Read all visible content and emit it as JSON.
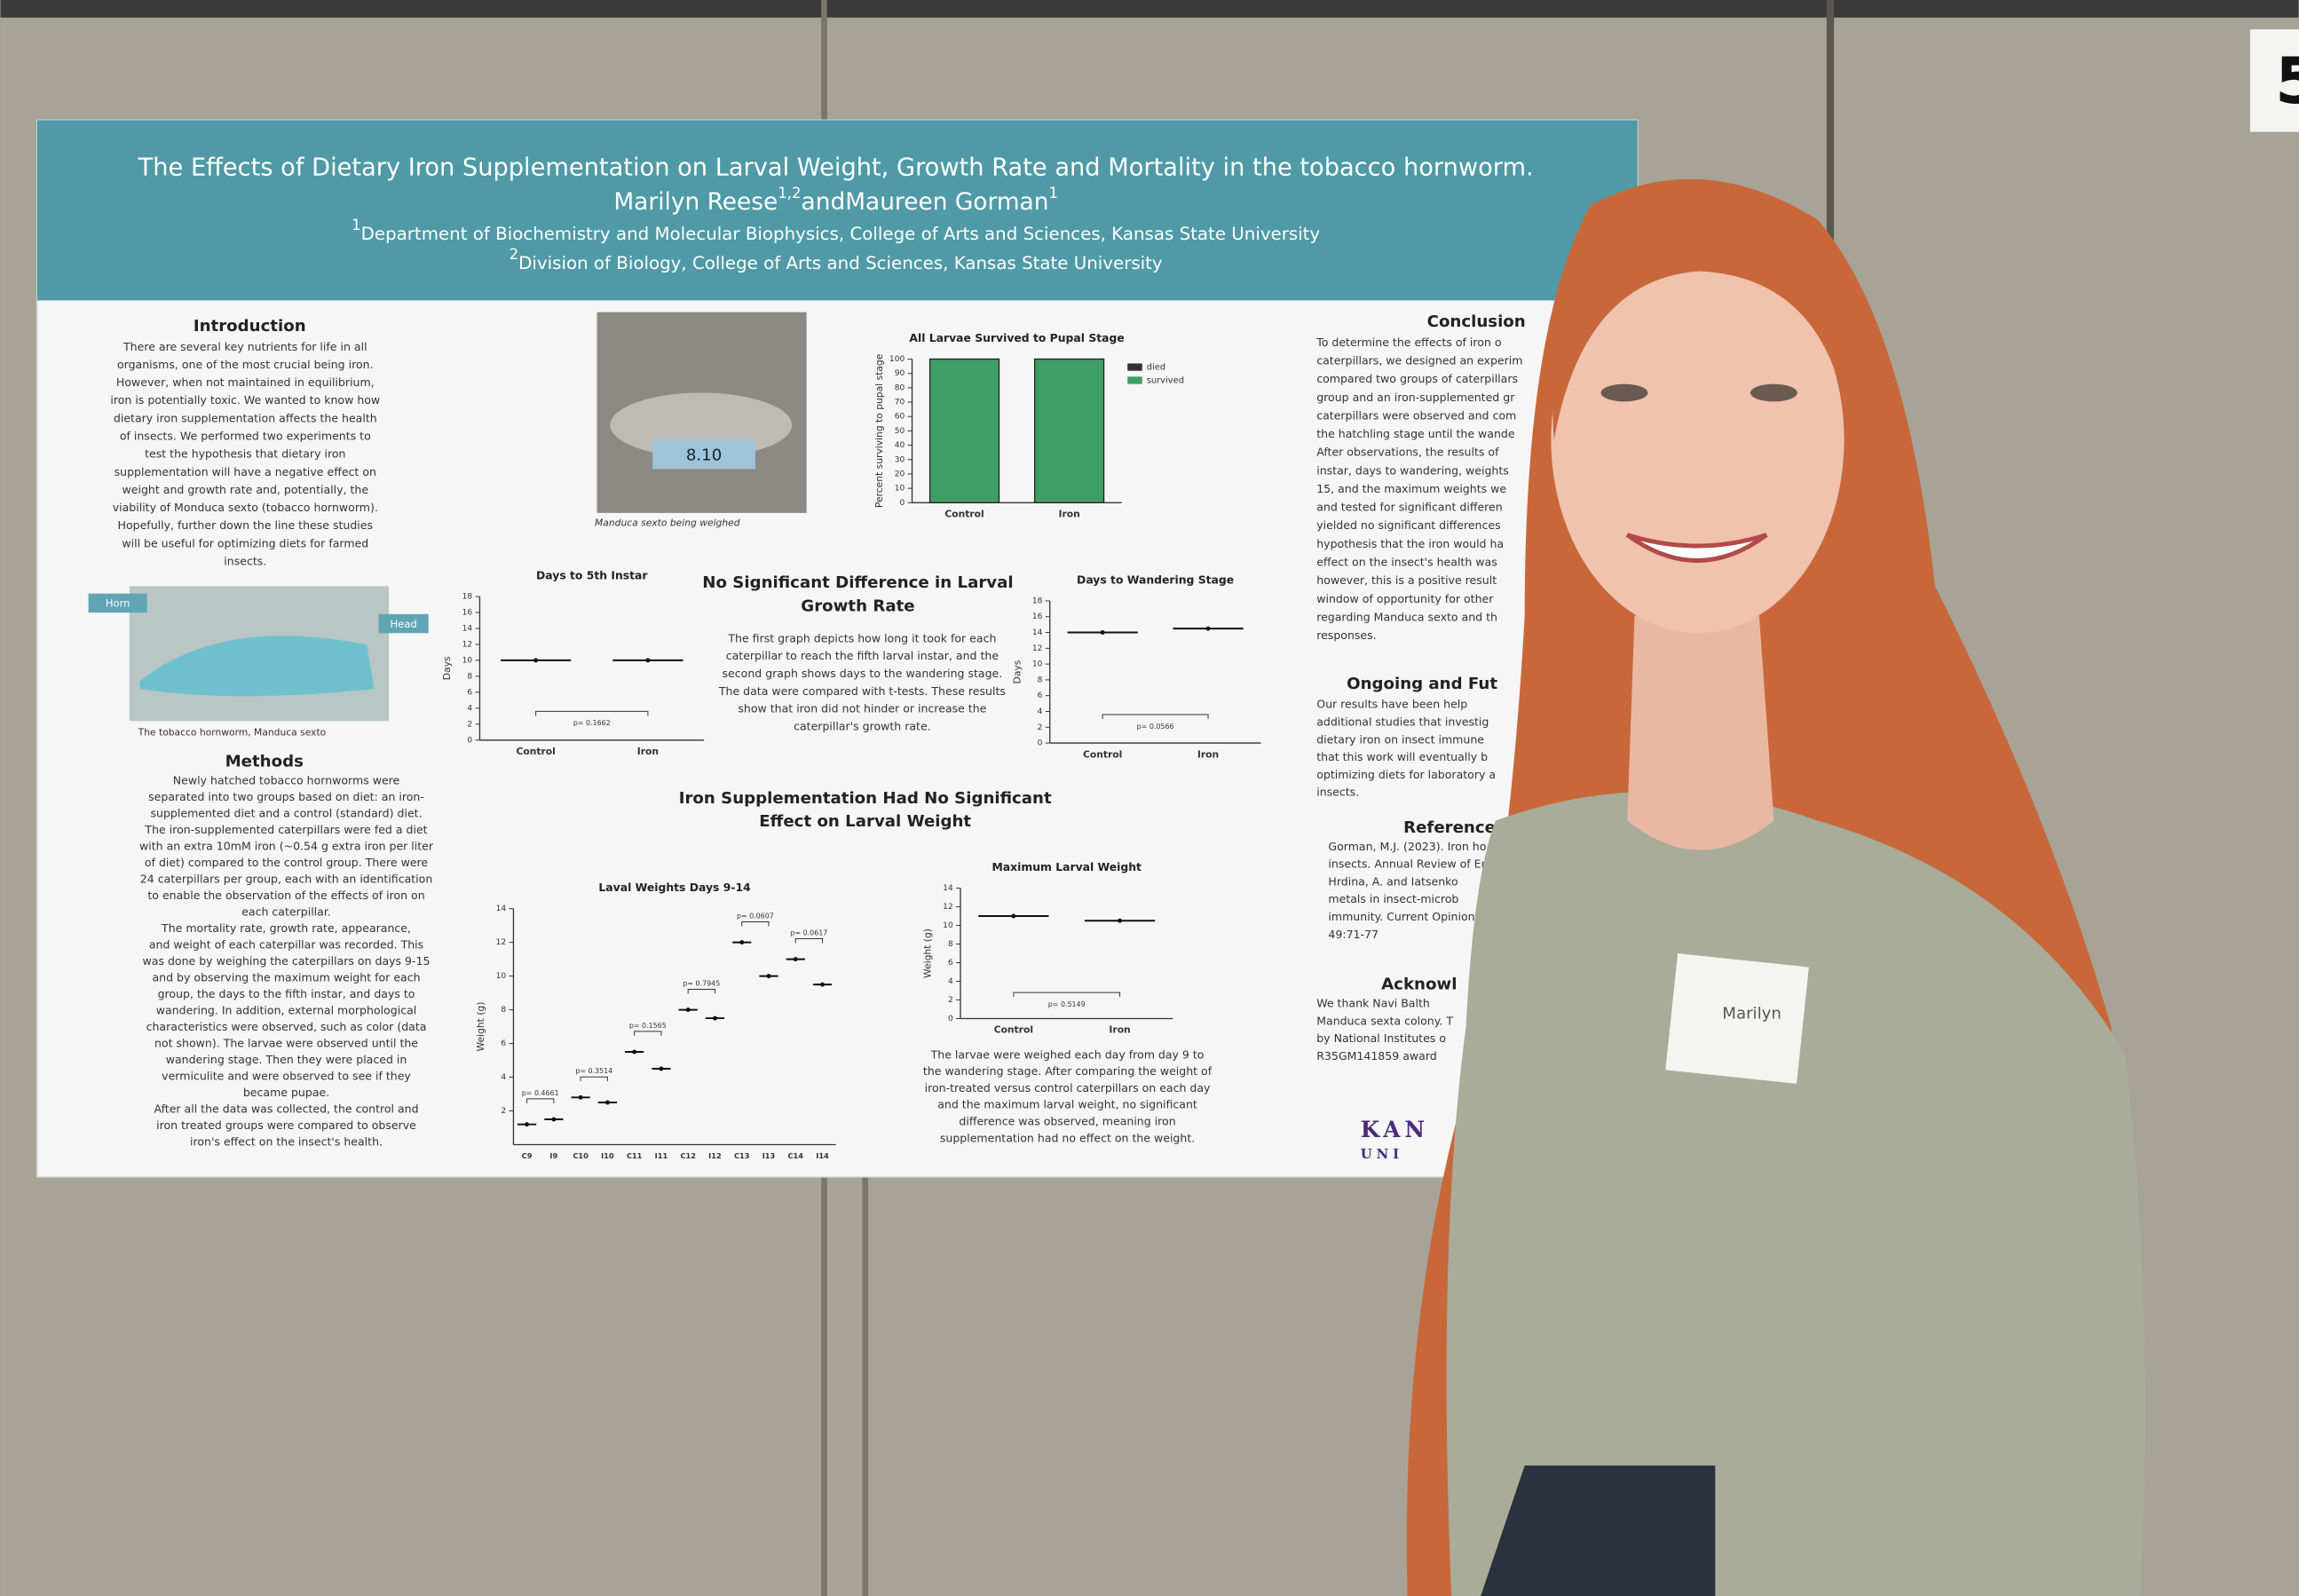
{
  "board_number": "5",
  "poster": {
    "title": "The Effects of Dietary Iron Supplementation on Larval Weight, Growth Rate and Mortality in the tobacco hornworm.",
    "authors": [
      {
        "name": "Marilyn Reese",
        "sup": "1,2"
      },
      {
        "name": "Maureen Gorman",
        "sup": "1"
      }
    ],
    "author_joiner": "and",
    "affiliations": [
      {
        "sup": "1",
        "text": "Department of Biochemistry and Molecular Biophysics, College of  Arts and Sciences, Kansas State University"
      },
      {
        "sup": "2",
        "text": "Division of Biology, College of Arts and Sciences, Kansas State University"
      }
    ],
    "introduction": {
      "heading": "Introduction",
      "lines": [
        "There are several key nutrients for life in all",
        "organisms, one of the most crucial being iron.",
        "However, when not maintained in equilibrium,",
        "iron is potentially toxic. We wanted to know how",
        "dietary iron supplementation affects the health",
        "of insects. We performed two experiments to",
        "test the hypothesis that dietary iron",
        "supplementation will have a negative effect on",
        "weight and growth rate and, potentially, the",
        "viability of Monduca sexto (tobacco hornworm).",
        "Hopefully, further down the line these studies",
        "will be useful for optimizing diets for farmed",
        "insects."
      ]
    },
    "photo_scale": {
      "display": "8.10",
      "caption": "Manduca sexto being weighed"
    },
    "photo_hornworm": {
      "label_horn": "Horn",
      "label_head": "Head",
      "caption": "The tobacco hornworm, Manduca sexto"
    },
    "methods": {
      "heading": "Methods",
      "lines": [
        "Newly hatched tobacco hornworms were",
        "separated into two groups based on diet: an iron-",
        "supplemented diet and a control (standard) diet.",
        "The iron-supplemented caterpillars were fed a diet",
        "with an extra 10mM iron (~0.54 g extra iron per liter",
        "of diet) compared to the control group. There were",
        "24 caterpillars per group, each with an identification",
        "to enable the observation of the effects of iron on",
        "each caterpillar.",
        "The mortality rate, growth rate, appearance,",
        "and weight of each caterpillar was recorded. This",
        "was done by weighing the caterpillars on days 9-15",
        "and by observing the maximum weight for each",
        "group, the days to the fifth instar, and days to",
        "wandering. In addition, external morphological",
        "characteristics were observed, such as color (data",
        "not shown). The larvae were observed until the",
        "wandering stage. Then they were placed in",
        "vermiculite and were observed to see if they",
        "became pupae.",
        "After all the data was collected, the control and",
        "iron treated groups were compared to observe",
        "iron's effect on the insect's health."
      ]
    },
    "growth": {
      "heading": [
        "No Significant Difference in Larval",
        "Growth Rate"
      ],
      "lines": [
        "The first graph depicts how long it took for each",
        "caterpillar to reach the fifth larval instar, and the",
        "second graph shows days to the wandering stage.",
        "The data were compared with t-tests. These results",
        "show that iron did not hinder or increase the",
        "caterpillar's growth rate."
      ]
    },
    "weight": {
      "heading": [
        "Iron Supplementation Had No Significant",
        "Effect on Larval Weight"
      ],
      "lines": [
        "The larvae were weighed each day from day 9 to",
        "the wandering stage. After comparing the weight of",
        "iron-treated versus control caterpillars on each day",
        "and the maximum larval weight, no significant",
        "difference was observed, meaning iron",
        "supplementation had no effect on the weight."
      ]
    },
    "conclusion": {
      "heading": "Conclusion",
      "lines": [
        "To determine the effects of iron o",
        "caterpillars, we designed an experim",
        "compared two groups of caterpillars",
        "group and an iron-supplemented gr",
        "caterpillars were observed and com",
        "the hatchling stage until the wande",
        "After observations, the results of",
        "instar, days to wandering, weights",
        "15, and the maximum weights we",
        "and tested for significant differen",
        "yielded no significant differences",
        "hypothesis that the iron would ha",
        "effect on the insect's health was",
        "however, this is a positive result",
        "window of opportunity for other",
        "regarding Manduca sexto and th",
        "responses."
      ]
    },
    "ongoing": {
      "heading": "Ongoing and Fut",
      "lines": [
        "Our results have been help",
        "additional studies that investig",
        "dietary iron on insect immune",
        "that this work will eventually b",
        "optimizing diets for laboratory a",
        "insects."
      ]
    },
    "references": {
      "heading": "References",
      "lines": [
        "Gorman, M.J. (2023). Iron ho",
        "insects. Annual Review of En",
        "Hrdina, A. and Iatsenko",
        "metals in insect-microb",
        "immunity. Current Opinion",
        "49:71-77"
      ]
    },
    "acknowledgments": {
      "heading": "Acknowl",
      "lines": [
        "We thank Navi Balth",
        "Manduca sexta colony. T",
        "by National Institutes o",
        "R35GM141859 award"
      ]
    },
    "logo": [
      "KAN",
      "UNI"
    ],
    "charts": {
      "survival": {
        "type": "bar",
        "title": "All Larvae Survived to Pupal Stage",
        "ylabel": "Percent surviving to pupal stage",
        "categories": [
          "Control",
          "Iron"
        ],
        "series": [
          {
            "name": "died",
            "color": "#333333",
            "values": [
              0,
              0
            ]
          },
          {
            "name": "survived",
            "color": "#3f9d66",
            "values": [
              100,
              100
            ]
          }
        ],
        "ylim": [
          0,
          100
        ],
        "yticks": [
          0,
          10,
          20,
          30,
          40,
          50,
          60,
          70,
          80,
          90,
          100
        ]
      },
      "instar": {
        "type": "dot",
        "title": "Days to 5th Instar",
        "ylabel": "Days",
        "categories": [
          "Control",
          "Iron"
        ],
        "values": [
          10,
          10
        ],
        "p_labels": [
          "p= 0.1662"
        ],
        "ylim": [
          0,
          18
        ],
        "yticks": [
          0,
          2,
          4,
          6,
          8,
          10,
          12,
          14,
          16,
          18
        ]
      },
      "wandering": {
        "type": "dot",
        "title": "Days to Wandering Stage",
        "ylabel": "Days",
        "categories": [
          "Control",
          "Iron"
        ],
        "values": [
          14,
          14.5
        ],
        "p_labels": [
          "p= 0.0566"
        ],
        "ylim": [
          0,
          18
        ],
        "yticks": [
          0,
          2,
          4,
          6,
          8,
          10,
          12,
          14,
          16,
          18
        ]
      },
      "daily": {
        "type": "dot",
        "title": "Laval Weights Days 9-14",
        "ylabel": "Weight (g)",
        "categories": [
          "C9",
          "I9",
          "C10",
          "I10",
          "C11",
          "I11",
          "C12",
          "I12",
          "C13",
          "I13",
          "C14",
          "I14"
        ],
        "values": [
          1.2,
          1.5,
          2.8,
          2.5,
          5.5,
          4.5,
          8,
          7.5,
          12,
          10,
          11,
          9.5
        ],
        "p_labels": [
          "p= 0.4661",
          "p= 0.3514",
          "p= 0.1565",
          "p= 0.7945",
          "p= 0.0607",
          "p= 0.0617"
        ],
        "ylim": [
          0,
          14
        ],
        "yticks": [
          2,
          4,
          6,
          8,
          10,
          12,
          14
        ]
      },
      "maxweight": {
        "type": "dot",
        "title": "Maximum Larval Weight",
        "ylabel": "Weight (g)",
        "categories": [
          "Control",
          "Iron"
        ],
        "values": [
          11,
          10.5
        ],
        "p_labels": [
          "p= 0.5149"
        ],
        "ylim": [
          0,
          14
        ],
        "yticks": [
          0,
          2,
          4,
          6,
          8,
          10,
          12,
          14
        ]
      }
    }
  },
  "name_tag": "Marilyn"
}
